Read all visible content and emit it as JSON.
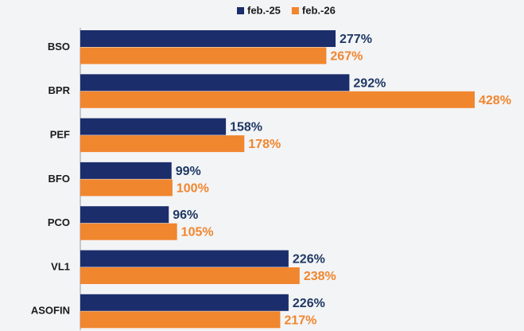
{
  "chart_data": {
    "type": "bar",
    "orientation": "horizontal",
    "categories": [
      "BSO",
      "BPR",
      "PEF",
      "BFO",
      "PCO",
      "VL1",
      "ASOFIN"
    ],
    "series": [
      {
        "name": "feb.-25",
        "color": "#1b2d6b",
        "values": [
          277,
          292,
          158,
          99,
          96,
          226,
          226
        ],
        "value_labels": [
          "277%",
          "292%",
          "158%",
          "99%",
          "96%",
          "226%",
          "226%"
        ]
      },
      {
        "name": "feb.-26",
        "color": "#f0862e",
        "values": [
          267,
          428,
          178,
          100,
          105,
          238,
          217
        ],
        "value_labels": [
          "267%",
          "428%",
          "178%",
          "100%",
          "105%",
          "238%",
          "217%"
        ]
      }
    ],
    "legend": "top"
  }
}
